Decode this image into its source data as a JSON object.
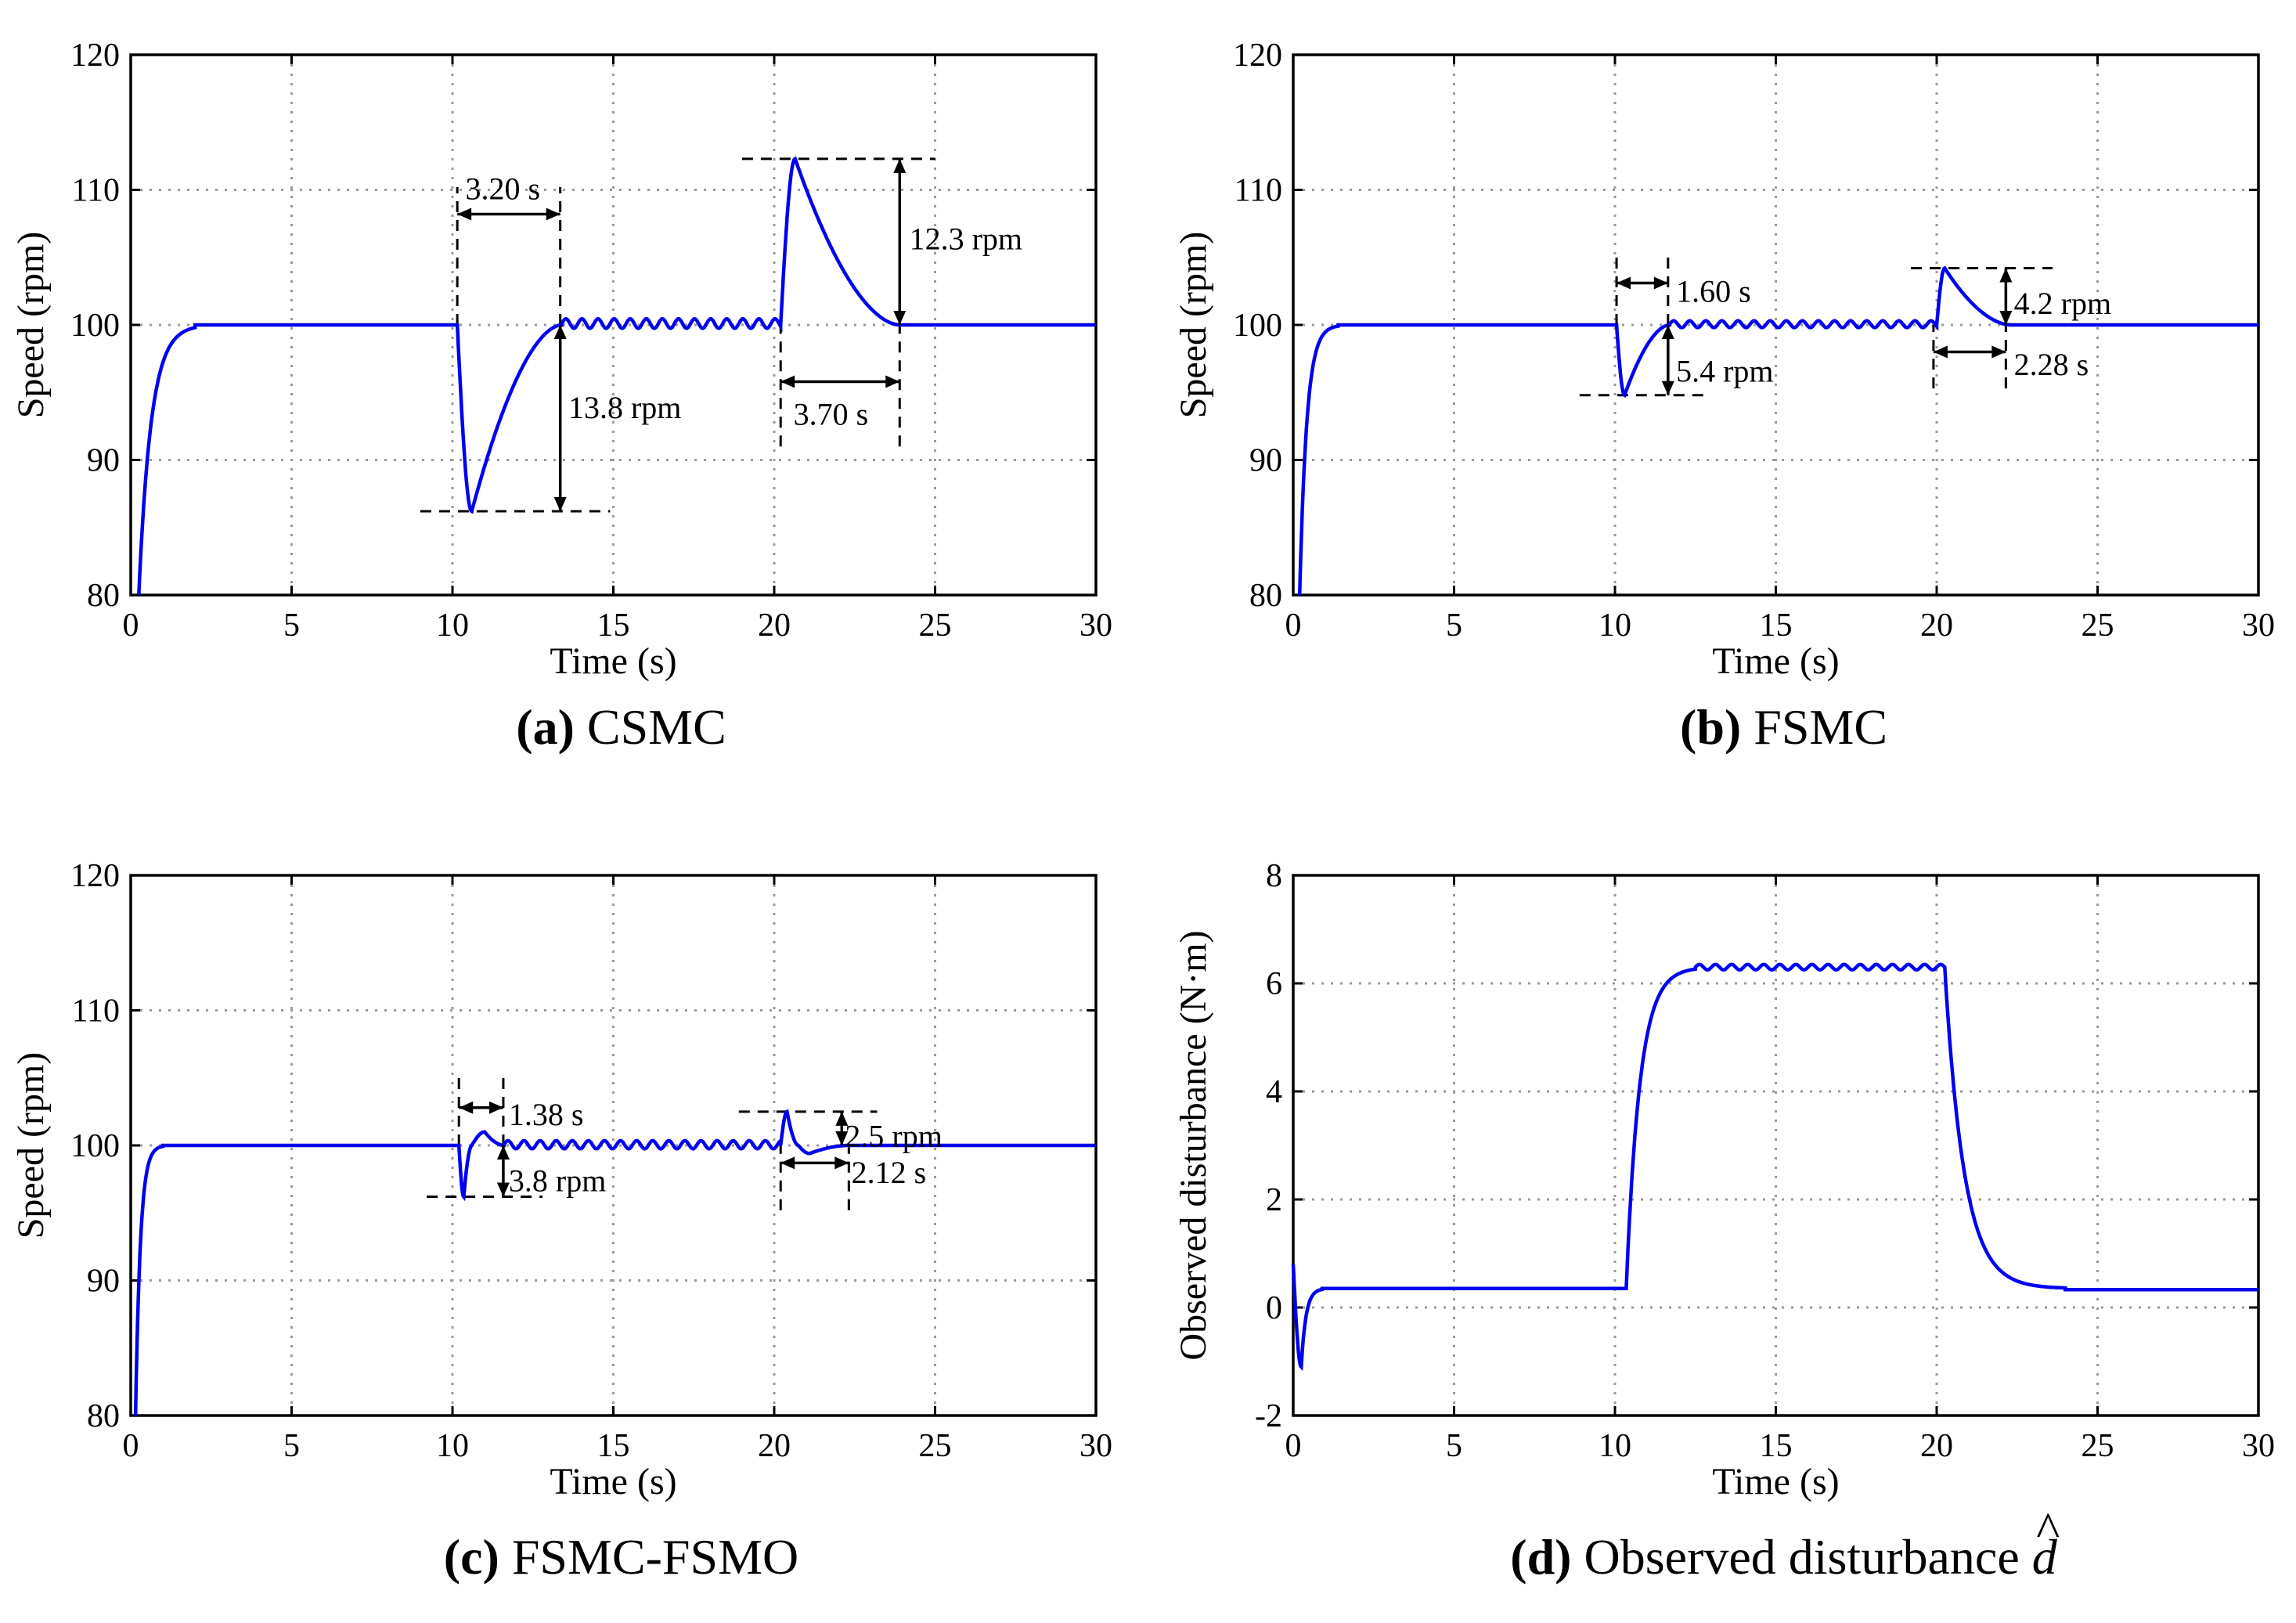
{
  "chart_data": [
    {
      "type": "line",
      "id": "a",
      "caption": {
        "letter": "(a)",
        "title": "CSMC"
      },
      "xlabel": "Time (s)",
      "ylabel": "Speed  (rpm)",
      "xlim": [
        0,
        30
      ],
      "ylim": [
        80,
        120
      ],
      "xticks": [
        "0",
        "5",
        "10",
        "15",
        "20",
        "25",
        "30"
      ],
      "yticks": [
        "80",
        "90",
        "100",
        "110",
        "120"
      ],
      "grid": true,
      "series": [
        {
          "name": "speed",
          "color": "#0000f0",
          "segments": [
            {
              "kind": "rise",
              "t0": 0.25,
              "t1": 2.0,
              "from": 80,
              "to": 100,
              "tau": 0.38
            },
            {
              "kind": "flat",
              "t0": 2.0,
              "t1": 10.15,
              "v": 100
            },
            {
              "kind": "dip",
              "t0": 10.15,
              "tmin": 10.6,
              "t1": 13.4,
              "base": 100,
              "min": 86.2,
              "recover": 0.95
            },
            {
              "kind": "ripple",
              "t0": 13.4,
              "t1": 20.2,
              "v": 100.1,
              "amp": 0.35,
              "period": 0.5
            },
            {
              "kind": "bump",
              "t0": 20.2,
              "tmax": 20.65,
              "t1": 23.9,
              "base": 100,
              "max": 112.3,
              "recover": 0.75
            },
            {
              "kind": "flat",
              "t0": 23.9,
              "t1": 30,
              "v": 100
            }
          ]
        }
      ],
      "annotations": [
        {
          "label": "3.20 s",
          "kind": "h",
          "from": 10.15,
          "to": 13.35,
          "at": 108.2,
          "text_x": 10.4,
          "text_y": 110.0
        },
        {
          "label": "13.8 rpm",
          "kind": "v",
          "from": 86.2,
          "to": 100,
          "at": 13.35,
          "text_x": 13.6,
          "text_y": 93.8
        },
        {
          "label": "12.3 rpm",
          "kind": "v",
          "from": 100,
          "to": 112.3,
          "at": 23.9,
          "text_x": 24.2,
          "text_y": 106.3
        },
        {
          "label": "3.70 s",
          "kind": "h",
          "from": 20.2,
          "to": 23.9,
          "at": 95.8,
          "text_x": 20.6,
          "text_y": 93.3
        }
      ],
      "guides": [
        {
          "kind": "vline",
          "x": 10.15,
          "y0": 100,
          "y1": 110.2
        },
        {
          "kind": "vline",
          "x": 13.35,
          "y0": 100,
          "y1": 110.2
        },
        {
          "kind": "hline",
          "y": 86.2,
          "x0": 9.0,
          "x1": 14.9
        },
        {
          "kind": "hline",
          "y": 112.3,
          "x0": 19.0,
          "x1": 25.0
        },
        {
          "kind": "vline",
          "x": 20.2,
          "y0": 91.0,
          "y1": 100
        },
        {
          "kind": "vline",
          "x": 23.9,
          "y0": 91.0,
          "y1": 100
        }
      ]
    },
    {
      "type": "line",
      "id": "b",
      "caption": {
        "letter": "(b)",
        "title": "FSMC"
      },
      "xlabel": "Time (s)",
      "ylabel": "Speed  (rpm)",
      "xlim": [
        0,
        30
      ],
      "ylim": [
        80,
        120
      ],
      "xticks": [
        "0",
        "5",
        "10",
        "15",
        "20",
        "25",
        "30"
      ],
      "yticks": [
        "80",
        "90",
        "100",
        "110",
        "120"
      ],
      "grid": true,
      "series": [
        {
          "name": "speed",
          "color": "#0000f0",
          "segments": [
            {
              "kind": "rise",
              "t0": 0.2,
              "t1": 1.4,
              "from": 80,
              "to": 100,
              "tau": 0.22
            },
            {
              "kind": "flat",
              "t0": 1.4,
              "t1": 10.05,
              "v": 100
            },
            {
              "kind": "dip",
              "t0": 10.05,
              "tmin": 10.3,
              "t1": 11.7,
              "base": 100,
              "min": 94.8,
              "recover": 0.9
            },
            {
              "kind": "ripple",
              "t0": 11.7,
              "t1": 20.0,
              "v": 100.05,
              "amp": 0.25,
              "period": 0.5
            },
            {
              "kind": "bump",
              "t0": 20.0,
              "tmax": 20.25,
              "t1": 22.3,
              "base": 100,
              "max": 104.2,
              "recover": 0.7
            },
            {
              "kind": "flat",
              "t0": 22.3,
              "t1": 30,
              "v": 100
            }
          ]
        }
      ],
      "annotations": [
        {
          "label": "1.60 s",
          "kind": "h",
          "from": 10.05,
          "to": 11.65,
          "at": 103.1,
          "text_x": 11.9,
          "text_y": 102.4
        },
        {
          "label": "5.4 rpm",
          "kind": "v",
          "from": 94.8,
          "to": 100,
          "at": 11.65,
          "text_x": 11.9,
          "text_y": 96.5
        },
        {
          "label": "4.2 rpm",
          "kind": "v",
          "from": 100,
          "to": 104.2,
          "at": 22.15,
          "text_x": 22.4,
          "text_y": 101.5
        },
        {
          "label": "2.28 s",
          "kind": "h",
          "from": 19.9,
          "to": 22.15,
          "at": 98.0,
          "text_x": 22.4,
          "text_y": 97.0
        }
      ],
      "guides": [
        {
          "kind": "vline",
          "x": 10.05,
          "y0": 100,
          "y1": 105.0
        },
        {
          "kind": "vline",
          "x": 11.65,
          "y0": 100,
          "y1": 105.0
        },
        {
          "kind": "hline",
          "y": 94.8,
          "x0": 8.9,
          "x1": 12.9
        },
        {
          "kind": "hline",
          "y": 104.2,
          "x0": 19.2,
          "x1": 23.6
        },
        {
          "kind": "vline",
          "x": 19.9,
          "y0": 95.3,
          "y1": 100
        },
        {
          "kind": "vline",
          "x": 22.15,
          "y0": 95.3,
          "y1": 100
        }
      ]
    },
    {
      "type": "line",
      "id": "c",
      "caption": {
        "letter": "(c)",
        "title": "FSMC-FSMO"
      },
      "xlabel": "Time (s)",
      "ylabel": "Speed  (rpm)",
      "xlim": [
        0,
        30
      ],
      "ylim": [
        80,
        120
      ],
      "xticks": [
        "0",
        "5",
        "10",
        "15",
        "20",
        "25",
        "30"
      ],
      "yticks": [
        "80",
        "90",
        "100",
        "110",
        "120"
      ],
      "grid": true,
      "series": [
        {
          "name": "speed",
          "color": "#0000f0",
          "segments": [
            {
              "kind": "rise",
              "t0": 0.15,
              "t1": 1.0,
              "from": 80,
              "to": 100,
              "tau": 0.15
            },
            {
              "kind": "flat",
              "t0": 1.0,
              "t1": 10.2,
              "v": 100
            },
            {
              "kind": "dip",
              "t0": 10.2,
              "tmin": 10.35,
              "t1": 10.6,
              "base": 100,
              "min": 96.2,
              "recover": 1.0
            },
            {
              "kind": "bump",
              "t0": 10.6,
              "tmax": 11.0,
              "t1": 11.6,
              "base": 100,
              "max": 101.0,
              "recover": 1.0
            },
            {
              "kind": "ripple",
              "t0": 11.6,
              "t1": 20.2,
              "v": 100.05,
              "amp": 0.3,
              "period": 0.5
            },
            {
              "kind": "bump",
              "t0": 20.2,
              "tmax": 20.4,
              "t1": 20.75,
              "base": 100,
              "max": 102.5,
              "recover": 1.0
            },
            {
              "kind": "dip",
              "t0": 20.75,
              "tmin": 21.1,
              "t1": 22.3,
              "base": 100,
              "min": 99.4,
              "recover": 1.0
            },
            {
              "kind": "flat",
              "t0": 22.3,
              "t1": 30,
              "v": 100
            }
          ]
        }
      ],
      "annotations": [
        {
          "label": "1.38 s",
          "kind": "h",
          "from": 10.2,
          "to": 11.58,
          "at": 102.8,
          "text_x": 11.75,
          "text_y": 102.2
        },
        {
          "label": "3.8 rpm",
          "kind": "v",
          "from": 96.2,
          "to": 100,
          "at": 11.58,
          "text_x": 11.75,
          "text_y": 97.3
        },
        {
          "label": "2.5 rpm",
          "kind": "v",
          "from": 100,
          "to": 102.5,
          "at": 22.1,
          "text_x": 22.2,
          "text_y": 100.6
        },
        {
          "label": "2.12 s",
          "kind": "h",
          "from": 20.2,
          "to": 22.32,
          "at": 98.7,
          "text_x": 22.4,
          "text_y": 97.9
        }
      ],
      "guides": [
        {
          "kind": "vline",
          "x": 10.2,
          "y0": 100,
          "y1": 105.0
        },
        {
          "kind": "vline",
          "x": 11.58,
          "y0": 100,
          "y1": 105.0
        },
        {
          "kind": "hline",
          "y": 96.2,
          "x0": 9.2,
          "x1": 12.8
        },
        {
          "kind": "hline",
          "y": 102.5,
          "x0": 18.9,
          "x1": 23.2
        },
        {
          "kind": "vline",
          "x": 20.2,
          "y0": 95.2,
          "y1": 100
        },
        {
          "kind": "vline",
          "x": 22.32,
          "y0": 95.2,
          "y1": 100
        }
      ]
    },
    {
      "type": "line",
      "id": "d",
      "caption": {
        "letter": "(d)",
        "title": "Observed disturbance",
        "symbol": "d",
        "hat": "^"
      },
      "xlabel": "Time (s)",
      "ylabel": "Observed disturbance (N·m)",
      "xlim": [
        0,
        30
      ],
      "ylim": [
        -2,
        8
      ],
      "xticks": [
        "0",
        "5",
        "10",
        "15",
        "20",
        "25",
        "30"
      ],
      "yticks": [
        "-2",
        "0",
        "2",
        "4",
        "6",
        "8"
      ],
      "grid": true,
      "series": [
        {
          "name": "disturbance",
          "color": "#0000f0",
          "segments": [
            {
              "kind": "spike",
              "t0": 0.0,
              "tmin": 0.25,
              "t1": 0.9,
              "start": 0.8,
              "min": -1.1,
              "end": 0.35
            },
            {
              "kind": "flat",
              "t0": 0.9,
              "t1": 10.35,
              "v": 0.35
            },
            {
              "kind": "rise",
              "t0": 10.35,
              "t1": 12.5,
              "from": 0.35,
              "to": 6.3,
              "tau": 0.42
            },
            {
              "kind": "ripple",
              "t0": 12.5,
              "t1": 20.25,
              "v": 6.3,
              "amp": 0.05,
              "period": 0.5
            },
            {
              "kind": "rise",
              "t0": 20.25,
              "t1": 24.0,
              "from": 6.3,
              "to": 0.35,
              "tau": 0.6
            },
            {
              "kind": "flat",
              "t0": 24.0,
              "t1": 30,
              "v": 0.33
            }
          ]
        }
      ],
      "annotations": [],
      "guides": []
    }
  ]
}
